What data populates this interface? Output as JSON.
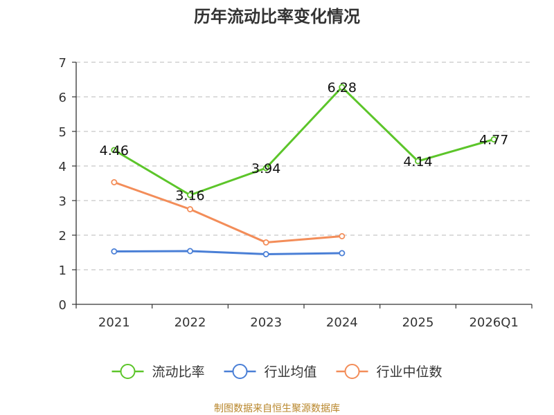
{
  "chart_data": {
    "type": "line",
    "title": "历年流动比率变化情况",
    "categories": [
      "2021",
      "2022",
      "2023",
      "2024",
      "2025",
      "2026Q1"
    ],
    "ylim": [
      0,
      7
    ],
    "yticks": [
      0,
      1,
      2,
      3,
      4,
      5,
      6,
      7
    ],
    "grid": true,
    "legend_position": "bottom",
    "series": [
      {
        "name": "流动比率",
        "color": "#5cc52a",
        "values": [
          4.46,
          3.16,
          3.94,
          6.28,
          4.14,
          4.77
        ],
        "labels": [
          "4.46",
          "3.16",
          "3.94",
          "6.28",
          "4.14",
          "4.77"
        ]
      },
      {
        "name": "行业均值",
        "color": "#4a7fd6",
        "values": [
          1.53,
          1.54,
          1.45,
          1.48,
          null,
          null
        ]
      },
      {
        "name": "行业中位数",
        "color": "#f38d59",
        "values": [
          3.53,
          2.75,
          1.79,
          1.97,
          null,
          null
        ]
      }
    ],
    "source": "制图数据来自恒生聚源数据库"
  }
}
